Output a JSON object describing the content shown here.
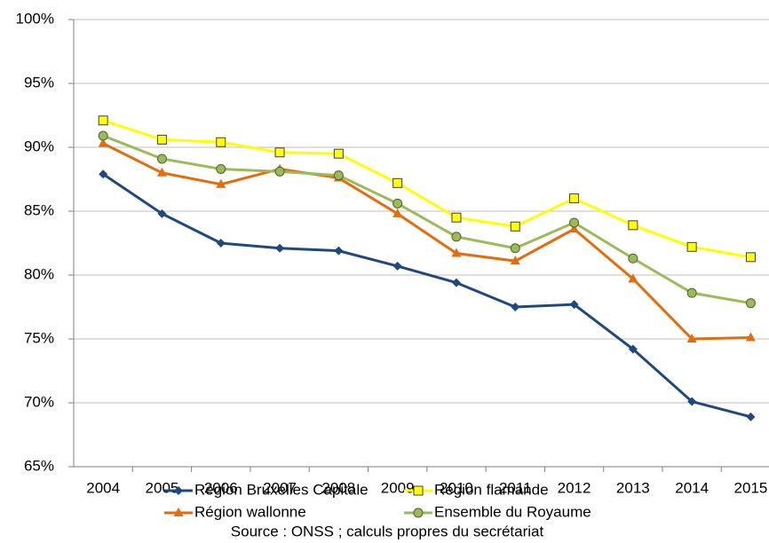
{
  "chart_data": {
    "type": "line",
    "categories": [
      "2004",
      "2005",
      "2006",
      "2007",
      "2008",
      "2009",
      "2010",
      "2011",
      "2012",
      "2013",
      "2014",
      "2015"
    ],
    "series": [
      {
        "name": "Région Bruxelles Capitale",
        "color": "#1f497d",
        "marker": "diamond",
        "values": [
          87.9,
          84.8,
          82.5,
          82.1,
          81.9,
          80.7,
          79.4,
          77.5,
          77.7,
          74.2,
          70.1,
          68.9
        ]
      },
      {
        "name": "Région flamande",
        "color": "#ffff00",
        "marker": "square",
        "values": [
          92.1,
          90.6,
          90.4,
          89.6,
          89.5,
          87.2,
          84.5,
          83.8,
          86.0,
          83.9,
          82.2,
          81.4
        ]
      },
      {
        "name": "Région wallonne",
        "color": "#e46c0a",
        "marker": "triangle",
        "values": [
          90.3,
          88.0,
          87.1,
          88.3,
          87.6,
          84.8,
          81.7,
          81.1,
          83.6,
          79.7,
          75.0,
          75.1
        ]
      },
      {
        "name": "Ensemble du Royaume",
        "color": "#9bbb59",
        "marker": "circle",
        "values": [
          90.9,
          89.1,
          88.3,
          88.1,
          87.8,
          85.6,
          83.0,
          82.1,
          84.1,
          81.3,
          78.6,
          77.8
        ]
      }
    ],
    "ylim": [
      65,
      100
    ],
    "yticks": [
      {
        "value": 65,
        "label": "65%"
      },
      {
        "value": 70,
        "label": "70%"
      },
      {
        "value": 75,
        "label": "75%"
      },
      {
        "value": 80,
        "label": "80%"
      },
      {
        "value": 85,
        "label": "85%"
      },
      {
        "value": 90,
        "label": "90%"
      },
      {
        "value": 95,
        "label": "95%"
      },
      {
        "value": 100,
        "label": "100%"
      }
    ],
    "grid": true,
    "legend": "bottom",
    "note": "Source : ONSS ; calculs propres du secrétariat"
  }
}
